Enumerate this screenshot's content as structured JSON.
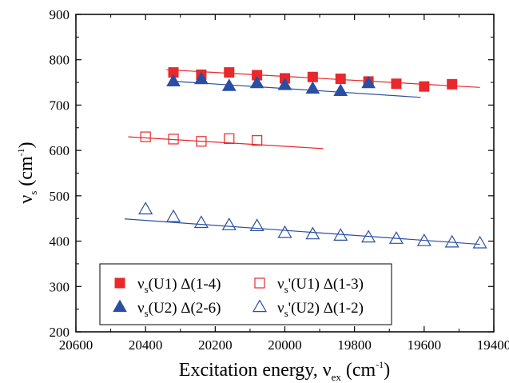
{
  "chart_data": {
    "type": "scatter",
    "x_reversed": true,
    "xlim": [
      19400,
      20600
    ],
    "ylim": [
      200,
      900
    ],
    "x_ticks": [
      20600,
      20400,
      20200,
      20000,
      19800,
      19600,
      19400
    ],
    "y_ticks": [
      200,
      300,
      400,
      500,
      600,
      700,
      800,
      900
    ],
    "xlabel": {
      "main": "Excitation energy, ν",
      "sub": "ex",
      "unit_open": " (cm",
      "sup": "-1",
      "unit_close": ")"
    },
    "ylabel": {
      "main": "ν",
      "sub": "s",
      "unit_open": " (cm",
      "sup": "-1",
      "unit_close": ")"
    },
    "legend_position": "bottom-left",
    "colors": {
      "red": "#e8282b",
      "blue": "#2a4ea3"
    },
    "series": [
      {
        "name": "νs(U1) Δ(1-4)",
        "legend": {
          "a": "ν",
          "sub": "s",
          "b": "(U1) Δ(1-4)"
        },
        "marker": "square-filled",
        "color": "#e8282b",
        "x": [
          20320,
          20240,
          20160,
          20080,
          20000,
          19920,
          19840,
          19760,
          19680,
          19600,
          19520
        ],
        "y": [
          772,
          767,
          772,
          766,
          759,
          762,
          758,
          752,
          747,
          741,
          746
        ],
        "fit": {
          "x": [
            20340,
            19440
          ],
          "y": [
            778,
            739
          ]
        }
      },
      {
        "name": "νs(U2) Δ(2-6)",
        "legend": {
          "a": "ν",
          "sub": "s",
          "b": "(U2) Δ(2-6)"
        },
        "marker": "triangle-filled",
        "color": "#2a4ea3",
        "x": [
          20320,
          20240,
          20160,
          20080,
          20000,
          19920,
          19840,
          19760
        ],
        "y": [
          752,
          757,
          742,
          748,
          744,
          736,
          731,
          748
        ],
        "fit": {
          "x": [
            20330,
            19610
          ],
          "y": [
            753,
            717
          ]
        }
      },
      {
        "name": "νs'(U1) Δ(1-3)",
        "legend": {
          "a": "ν",
          "sub": "s",
          "b": "'(U1) Δ(1-3)"
        },
        "marker": "square-open",
        "color": "#e8282b",
        "x": [
          20400,
          20320,
          20240,
          20160,
          20080
        ],
        "y": [
          630,
          625,
          620,
          626,
          622
        ],
        "fit": {
          "x": [
            20450,
            19890
          ],
          "y": [
            630,
            604
          ]
        }
      },
      {
        "name": "νs'(U2) Δ(1-2)",
        "legend": {
          "a": "ν",
          "sub": "s",
          "b": "'(U2) Δ(1-2)"
        },
        "marker": "triangle-open",
        "color": "#2a4ea3",
        "x": [
          20400,
          20320,
          20240,
          20160,
          20080,
          20000,
          19920,
          19840,
          19760,
          19680,
          19600,
          19520,
          19440
        ],
        "y": [
          470,
          453,
          440,
          435,
          433,
          418,
          415,
          412,
          408,
          405,
          400,
          397,
          395
        ],
        "fit": {
          "x": [
            20460,
            19440
          ],
          "y": [
            449,
            393
          ]
        }
      }
    ]
  }
}
